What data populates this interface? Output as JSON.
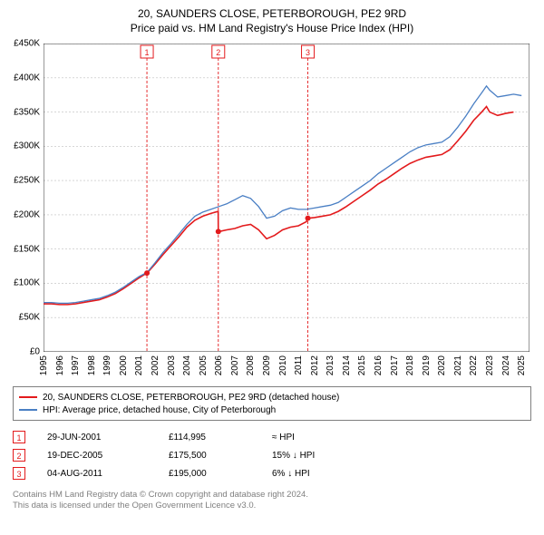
{
  "title": {
    "line1": "20, SAUNDERS CLOSE, PETERBOROUGH, PE2 9RD",
    "line2": "Price paid vs. HM Land Registry's House Price Index (HPI)"
  },
  "chart": {
    "type": "line",
    "background_color": "#ffffff",
    "grid_color": "#bfbfbf",
    "axis_color": "#000000",
    "x": {
      "min": 1995,
      "max": 2025.5,
      "ticks": [
        1995,
        1996,
        1997,
        1998,
        1999,
        2000,
        2001,
        2002,
        2003,
        2004,
        2005,
        2006,
        2007,
        2008,
        2009,
        2010,
        2011,
        2012,
        2013,
        2014,
        2015,
        2016,
        2017,
        2018,
        2019,
        2020,
        2021,
        2022,
        2023,
        2024,
        2025
      ]
    },
    "y": {
      "min": 0,
      "max": 450000,
      "ticks": [
        0,
        50000,
        100000,
        150000,
        200000,
        250000,
        300000,
        350000,
        400000,
        450000
      ],
      "tick_labels": [
        "£0",
        "£50K",
        "£100K",
        "£150K",
        "£200K",
        "£250K",
        "£300K",
        "£350K",
        "£400K",
        "£450K"
      ]
    },
    "series": [
      {
        "name": "20, SAUNDERS CLOSE, PETERBOROUGH, PE2 9RD (detached house)",
        "color": "#e31a1c",
        "line_width": 1.6,
        "data": [
          [
            1995.0,
            70000
          ],
          [
            1995.5,
            70000
          ],
          [
            1996.0,
            69000
          ],
          [
            1996.5,
            69000
          ],
          [
            1997.0,
            70000
          ],
          [
            1997.5,
            72000
          ],
          [
            1998.0,
            74000
          ],
          [
            1998.5,
            76000
          ],
          [
            1999.0,
            80000
          ],
          [
            1999.5,
            85000
          ],
          [
            2000.0,
            92000
          ],
          [
            2000.5,
            100000
          ],
          [
            2001.0,
            108000
          ],
          [
            2001.49,
            114995
          ],
          [
            2001.5,
            114995
          ],
          [
            2002.0,
            128000
          ],
          [
            2002.5,
            142000
          ],
          [
            2003.0,
            155000
          ],
          [
            2003.5,
            168000
          ],
          [
            2004.0,
            182000
          ],
          [
            2004.5,
            192000
          ],
          [
            2005.0,
            198000
          ],
          [
            2005.5,
            202000
          ],
          [
            2005.96,
            205000
          ],
          [
            2005.97,
            175500
          ],
          [
            2006.0,
            175500
          ],
          [
            2006.5,
            178000
          ],
          [
            2007.0,
            180000
          ],
          [
            2007.5,
            184000
          ],
          [
            2008.0,
            186000
          ],
          [
            2008.5,
            178000
          ],
          [
            2009.0,
            165000
          ],
          [
            2009.5,
            170000
          ],
          [
            2010.0,
            178000
          ],
          [
            2010.5,
            182000
          ],
          [
            2011.0,
            184000
          ],
          [
            2011.5,
            190000
          ],
          [
            2011.59,
            195000
          ],
          [
            2011.6,
            195000
          ],
          [
            2012.0,
            196000
          ],
          [
            2012.5,
            198000
          ],
          [
            2013.0,
            200000
          ],
          [
            2013.5,
            205000
          ],
          [
            2014.0,
            212000
          ],
          [
            2014.5,
            220000
          ],
          [
            2015.0,
            228000
          ],
          [
            2015.5,
            236000
          ],
          [
            2016.0,
            245000
          ],
          [
            2016.5,
            252000
          ],
          [
            2017.0,
            260000
          ],
          [
            2017.5,
            268000
          ],
          [
            2018.0,
            275000
          ],
          [
            2018.5,
            280000
          ],
          [
            2019.0,
            284000
          ],
          [
            2019.5,
            286000
          ],
          [
            2020.0,
            288000
          ],
          [
            2020.5,
            295000
          ],
          [
            2021.0,
            308000
          ],
          [
            2021.5,
            322000
          ],
          [
            2022.0,
            338000
          ],
          [
            2022.5,
            350000
          ],
          [
            2022.8,
            358000
          ],
          [
            2023.0,
            350000
          ],
          [
            2023.5,
            345000
          ],
          [
            2024.0,
            348000
          ],
          [
            2024.5,
            350000
          ]
        ]
      },
      {
        "name": "HPI: Average price, detached house, City of Peterborough",
        "color": "#4a7fc4",
        "line_width": 1.3,
        "data": [
          [
            1995.0,
            72000
          ],
          [
            1995.5,
            72000
          ],
          [
            1996.0,
            71000
          ],
          [
            1996.5,
            71000
          ],
          [
            1997.0,
            72000
          ],
          [
            1997.5,
            74000
          ],
          [
            1998.0,
            76000
          ],
          [
            1998.5,
            78000
          ],
          [
            1999.0,
            82000
          ],
          [
            1999.5,
            87000
          ],
          [
            2000.0,
            94000
          ],
          [
            2000.5,
            102000
          ],
          [
            2001.0,
            110000
          ],
          [
            2001.5,
            116000
          ],
          [
            2002.0,
            130000
          ],
          [
            2002.5,
            145000
          ],
          [
            2003.0,
            158000
          ],
          [
            2003.5,
            172000
          ],
          [
            2004.0,
            186000
          ],
          [
            2004.5,
            198000
          ],
          [
            2005.0,
            204000
          ],
          [
            2005.5,
            208000
          ],
          [
            2006.0,
            212000
          ],
          [
            2006.5,
            216000
          ],
          [
            2007.0,
            222000
          ],
          [
            2007.5,
            228000
          ],
          [
            2008.0,
            224000
          ],
          [
            2008.5,
            212000
          ],
          [
            2009.0,
            195000
          ],
          [
            2009.5,
            198000
          ],
          [
            2010.0,
            206000
          ],
          [
            2010.5,
            210000
          ],
          [
            2011.0,
            208000
          ],
          [
            2011.5,
            208000
          ],
          [
            2012.0,
            210000
          ],
          [
            2012.5,
            212000
          ],
          [
            2013.0,
            214000
          ],
          [
            2013.5,
            218000
          ],
          [
            2014.0,
            226000
          ],
          [
            2014.5,
            234000
          ],
          [
            2015.0,
            242000
          ],
          [
            2015.5,
            250000
          ],
          [
            2016.0,
            260000
          ],
          [
            2016.5,
            268000
          ],
          [
            2017.0,
            276000
          ],
          [
            2017.5,
            284000
          ],
          [
            2018.0,
            292000
          ],
          [
            2018.5,
            298000
          ],
          [
            2019.0,
            302000
          ],
          [
            2019.5,
            304000
          ],
          [
            2020.0,
            306000
          ],
          [
            2020.5,
            314000
          ],
          [
            2021.0,
            328000
          ],
          [
            2021.5,
            344000
          ],
          [
            2022.0,
            362000
          ],
          [
            2022.5,
            378000
          ],
          [
            2022.8,
            388000
          ],
          [
            2023.0,
            382000
          ],
          [
            2023.5,
            372000
          ],
          [
            2024.0,
            374000
          ],
          [
            2024.5,
            376000
          ],
          [
            2025.0,
            374000
          ]
        ]
      }
    ],
    "markers": [
      {
        "n": "1",
        "x": 2001.49,
        "color": "#e31a1c"
      },
      {
        "n": "2",
        "x": 2005.97,
        "color": "#e31a1c"
      },
      {
        "n": "3",
        "x": 2011.59,
        "color": "#e31a1c"
      }
    ]
  },
  "legend": {
    "items": [
      {
        "color": "#e31a1c",
        "label": "20, SAUNDERS CLOSE, PETERBOROUGH, PE2 9RD (detached house)"
      },
      {
        "color": "#4a7fc4",
        "label": "HPI: Average price, detached house, City of Peterborough"
      }
    ]
  },
  "sales": [
    {
      "n": "1",
      "color": "#e31a1c",
      "date": "29-JUN-2001",
      "price": "£114,995",
      "diff": "≈ HPI"
    },
    {
      "n": "2",
      "color": "#e31a1c",
      "date": "19-DEC-2005",
      "price": "£175,500",
      "diff": "15% ↓ HPI"
    },
    {
      "n": "3",
      "color": "#e31a1c",
      "date": "04-AUG-2011",
      "price": "£195,000",
      "diff": "6% ↓ HPI"
    }
  ],
  "footer": {
    "line1": "Contains HM Land Registry data © Crown copyright and database right 2024.",
    "line2": "This data is licensed under the Open Government Licence v3.0."
  }
}
